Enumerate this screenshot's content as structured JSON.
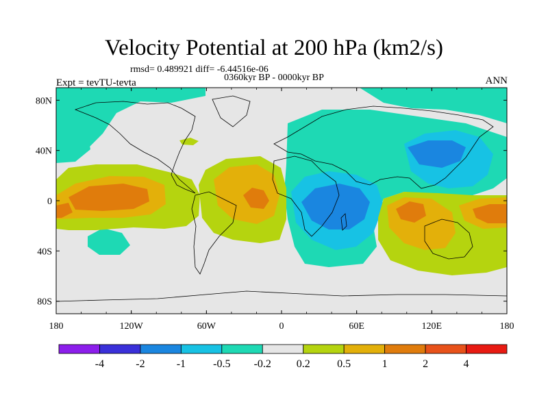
{
  "title": "Velocity Potential at 200 hPa (km2/s)",
  "stats": "rmsd= 0.489921 diff= -6.44516e-06",
  "period": "0360kyr BP - 0000kyr BP",
  "experiment": "Expt = tevTU-tevta",
  "season": "ANN",
  "map": {
    "projection": "cylindrical-equidistant",
    "lat_tick_labels": [
      "80N",
      "40N",
      "0",
      "40S",
      "80S"
    ],
    "lat_ticks": [
      80,
      40,
      0,
      -40,
      -80
    ],
    "lon_tick_labels": [
      "180",
      "120W",
      "60W",
      "0",
      "60E",
      "120E",
      "180"
    ],
    "lon_ticks": [
      -180,
      -120,
      -60,
      0,
      60,
      120,
      180
    ]
  },
  "colorbar": {
    "labels": [
      "-4",
      "-2",
      "-1",
      "-0.5",
      "-0.2",
      "0.2",
      "0.5",
      "1",
      "2",
      "4"
    ],
    "colors": [
      "#8c1eeb",
      "#3a30d9",
      "#1a86e0",
      "#17c2e4",
      "#1ed9b4",
      "#e6e6e6",
      "#b5d40f",
      "#e3b00a",
      "#e07c0c",
      "#e8521a",
      "#e81a12"
    ]
  },
  "fill_colors": {
    "neg_strong": "#1a86e0",
    "neg_mid": "#17c2e4",
    "neg_weak": "#1ed9b4",
    "neutral": "#e6e6e6",
    "pos_weak": "#b5d40f",
    "pos_mid": "#e3b00a",
    "pos_strong": "#e07c0c"
  }
}
